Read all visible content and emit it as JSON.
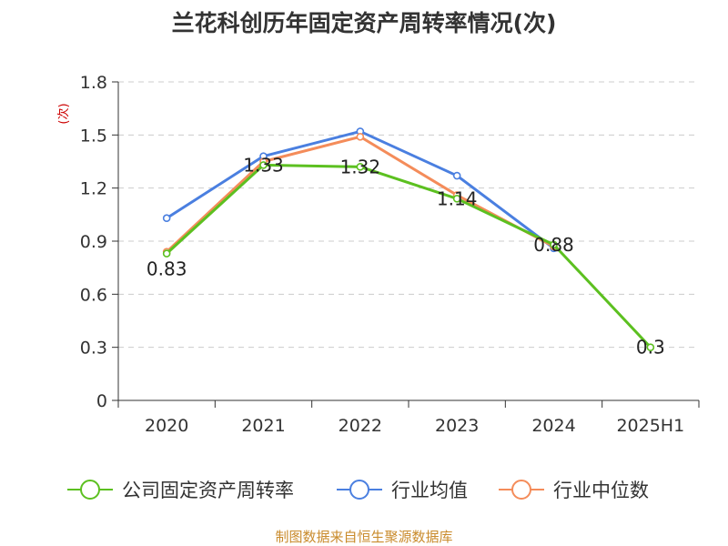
{
  "title": "兰花科创历年固定资产周转率情况(次)",
  "footer": "制图数据来自恒生聚源数据库",
  "chart_data": {
    "type": "line",
    "title": "兰花科创历年固定资产周转率情况(次)",
    "ylabel": "(次)",
    "xlabel": "",
    "categories": [
      "2020",
      "2021",
      "2022",
      "2023",
      "2024",
      "2025H1"
    ],
    "ylim": [
      0,
      1.8
    ],
    "yticks": [
      "0",
      "0.3",
      "0.6",
      "0.9",
      "1.2",
      "1.5",
      "1.8"
    ],
    "grid": true,
    "legend_position": "bottom",
    "series": [
      {
        "name": "公司固定资产周转率",
        "color": "#5cc020",
        "values": [
          0.83,
          1.33,
          1.32,
          1.14,
          0.88,
          0.3
        ],
        "labels": [
          "0.83",
          "1.33",
          "1.32",
          "1.14",
          "0.88",
          "0.3"
        ]
      },
      {
        "name": "行业均值",
        "color": "#4a7fe0",
        "values": [
          1.03,
          1.38,
          1.52,
          1.27,
          0.86,
          null
        ]
      },
      {
        "name": "行业中位数",
        "color": "#f48c5a",
        "values": [
          0.84,
          1.35,
          1.49,
          1.16,
          0.87,
          null
        ]
      }
    ]
  }
}
